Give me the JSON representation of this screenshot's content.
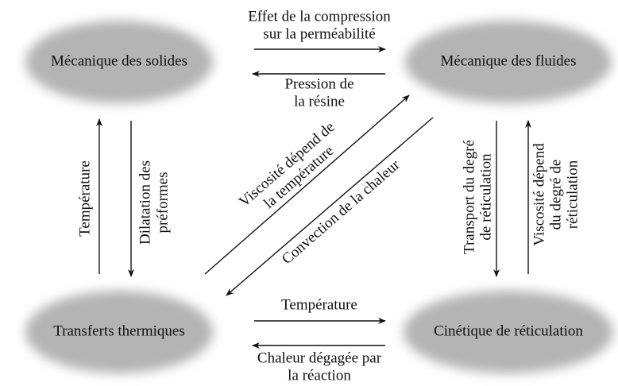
{
  "nodes": [
    {
      "label": "Mécanique des solides"
    },
    {
      "label": "Mécanique des fluides"
    },
    {
      "label": "Transferts thermiques"
    },
    {
      "label": "Cinétique de réticulation"
    }
  ],
  "edges": [
    {
      "label": [
        "Effet de la compression",
        "sur la perméabilité"
      ]
    },
    {
      "label": [
        "Pression de",
        "la résine"
      ]
    },
    {
      "label": [
        "Température"
      ]
    },
    {
      "label": [
        "Dilatation des",
        "préformes"
      ]
    },
    {
      "label": [
        "Viscosité dépend de",
        "la température"
      ]
    },
    {
      "label": [
        "Convection de la chaleur"
      ]
    },
    {
      "label": [
        "Transport du degré",
        "de réticulation"
      ]
    },
    {
      "label": [
        "Viscosité dépend",
        "du degré de",
        "réticulation"
      ]
    },
    {
      "label": [
        "Température"
      ]
    },
    {
      "label": [
        "Chaleur dégagée par",
        "la réaction"
      ]
    }
  ]
}
